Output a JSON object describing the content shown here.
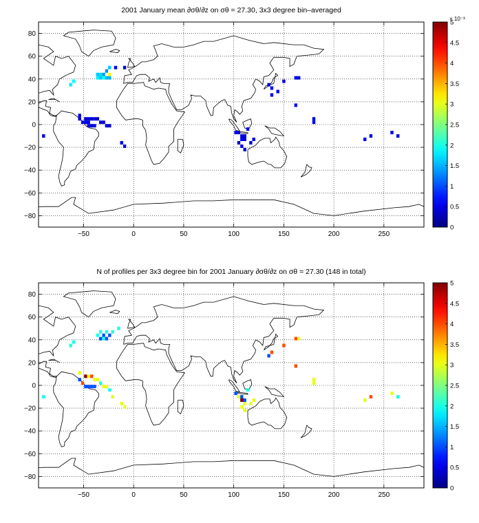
{
  "chart_data": [
    {
      "type": "heatmap",
      "title": "2001 January mean ∂σθ/∂z on σθ = 27.30, 3x3 degree bin–averaged",
      "xlim": [
        -95,
        290
      ],
      "ylim": [
        -90,
        90
      ],
      "xticks": [
        -50,
        0,
        50,
        100,
        150,
        200,
        250
      ],
      "yticks": [
        -80,
        -60,
        -40,
        -20,
        0,
        20,
        40,
        60,
        80
      ],
      "grid": true,
      "colorbar": {
        "min": 0,
        "max": 5,
        "ticks": [
          0,
          0.5,
          1,
          1.5,
          2,
          2.5,
          3,
          3.5,
          4,
          4.5,
          5
        ],
        "multiplier": "× 10⁻³",
        "colormap": "jet"
      },
      "cells": [
        {
          "lon": -90,
          "lat": -10,
          "v": 0.4
        },
        {
          "lon": -60,
          "lat": 38,
          "v": 1.9
        },
        {
          "lon": -63,
          "lat": 35,
          "v": 1.8
        },
        {
          "lon": -36,
          "lat": 44,
          "v": 1.6
        },
        {
          "lon": -33,
          "lat": 44,
          "v": 1.7
        },
        {
          "lon": -30,
          "lat": 44,
          "v": 1.4
        },
        {
          "lon": -27,
          "lat": 47,
          "v": 1.3
        },
        {
          "lon": -24,
          "lat": 50,
          "v": 1.6
        },
        {
          "lon": -36,
          "lat": 41,
          "v": 1.8
        },
        {
          "lon": -33,
          "lat": 41,
          "v": 1.6
        },
        {
          "lon": -30,
          "lat": 41,
          "v": 1.9
        },
        {
          "lon": -27,
          "lat": 41,
          "v": 1.5
        },
        {
          "lon": -24,
          "lat": 44,
          "v": 3.1
        },
        {
          "lon": -24,
          "lat": 41,
          "v": 1.5
        },
        {
          "lon": -18,
          "lat": 50,
          "v": 0.6
        },
        {
          "lon": -9,
          "lat": 50,
          "v": 0.5
        },
        {
          "lon": -54,
          "lat": 8,
          "v": 0.5
        },
        {
          "lon": -54,
          "lat": 5,
          "v": 0.4
        },
        {
          "lon": -51,
          "lat": 2,
          "v": 0.5
        },
        {
          "lon": -48,
          "lat": 5,
          "v": 0.4
        },
        {
          "lon": -48,
          "lat": 2,
          "v": 0.5
        },
        {
          "lon": -45,
          "lat": 5,
          "v": 0.4
        },
        {
          "lon": -45,
          "lat": 2,
          "v": 0.5
        },
        {
          "lon": -42,
          "lat": 5,
          "v": 0.4
        },
        {
          "lon": -39,
          "lat": 5,
          "v": 0.5
        },
        {
          "lon": -45,
          "lat": -1,
          "v": 0.5
        },
        {
          "lon": -42,
          "lat": -1,
          "v": 0.4
        },
        {
          "lon": -39,
          "lat": -1,
          "v": 0.5
        },
        {
          "lon": -36,
          "lat": 5,
          "v": 0.4
        },
        {
          "lon": -33,
          "lat": 2,
          "v": 0.5
        },
        {
          "lon": -30,
          "lat": 2,
          "v": 0.4
        },
        {
          "lon": -27,
          "lat": -1,
          "v": 0.5
        },
        {
          "lon": -24,
          "lat": -1,
          "v": 0.4
        },
        {
          "lon": -12,
          "lat": -16,
          "v": 0.5
        },
        {
          "lon": -9,
          "lat": -19,
          "v": 0.4
        },
        {
          "lon": 135,
          "lat": 35,
          "v": 0.5
        },
        {
          "lon": 138,
          "lat": 32,
          "v": 0.6
        },
        {
          "lon": 138,
          "lat": 26,
          "v": 0.5
        },
        {
          "lon": 144,
          "lat": 29,
          "v": 0.6
        },
        {
          "lon": 150,
          "lat": 38,
          "v": 0.5
        },
        {
          "lon": 162,
          "lat": 41,
          "v": 0.6
        },
        {
          "lon": 165,
          "lat": 41,
          "v": 0.5
        },
        {
          "lon": 162,
          "lat": 17,
          "v": 0.6
        },
        {
          "lon": 180,
          "lat": 5,
          "v": 0.5
        },
        {
          "lon": 180,
          "lat": 2,
          "v": 0.6
        },
        {
          "lon": 102,
          "lat": -7,
          "v": 0.5
        },
        {
          "lon": 105,
          "lat": -7,
          "v": 0.4
        },
        {
          "lon": 108,
          "lat": -10,
          "v": 0.5
        },
        {
          "lon": 111,
          "lat": -10,
          "v": 0.4
        },
        {
          "lon": 108,
          "lat": -13,
          "v": 0.6
        },
        {
          "lon": 111,
          "lat": -13,
          "v": 0.5
        },
        {
          "lon": 105,
          "lat": -16,
          "v": 0.4
        },
        {
          "lon": 108,
          "lat": -19,
          "v": 0.5
        },
        {
          "lon": 111,
          "lat": -22,
          "v": 0.4
        },
        {
          "lon": 117,
          "lat": -16,
          "v": 0.5
        },
        {
          "lon": 120,
          "lat": -13,
          "v": 0.6
        },
        {
          "lon": 114,
          "lat": -4,
          "v": 0.5
        },
        {
          "lon": 231,
          "lat": -13,
          "v": 0.6
        },
        {
          "lon": 237,
          "lat": -10,
          "v": 0.5
        },
        {
          "lon": 258,
          "lat": -7,
          "v": 0.6
        },
        {
          "lon": 264,
          "lat": -10,
          "v": 0.5
        }
      ]
    },
    {
      "type": "heatmap",
      "title": "N of profiles per 3x3 degree bin for 2001 January ∂σθ/∂z on σθ = 27.30 (148 in total)",
      "xlim": [
        -95,
        290
      ],
      "ylim": [
        -90,
        90
      ],
      "xticks": [
        -50,
        0,
        50,
        100,
        150,
        200,
        250
      ],
      "yticks": [
        -80,
        -60,
        -40,
        -20,
        0,
        20,
        40,
        60,
        80
      ],
      "grid": true,
      "colorbar": {
        "min": 0,
        "max": 5,
        "ticks": [
          0,
          0.5,
          1,
          1.5,
          2,
          2.5,
          3,
          3.5,
          4,
          4.5,
          5
        ],
        "multiplier": "",
        "colormap": "jet"
      },
      "cells": [
        {
          "lon": -90,
          "lat": -10,
          "v": 2
        },
        {
          "lon": -60,
          "lat": 38,
          "v": 2
        },
        {
          "lon": -63,
          "lat": 35,
          "v": 2
        },
        {
          "lon": -36,
          "lat": 44,
          "v": 2
        },
        {
          "lon": -33,
          "lat": 47,
          "v": 2
        },
        {
          "lon": -30,
          "lat": 44,
          "v": 1
        },
        {
          "lon": -27,
          "lat": 47,
          "v": 2
        },
        {
          "lon": -24,
          "lat": 44,
          "v": 1
        },
        {
          "lon": -33,
          "lat": 41,
          "v": 1
        },
        {
          "lon": -30,
          "lat": 41,
          "v": 2
        },
        {
          "lon": -27,
          "lat": 41,
          "v": 1
        },
        {
          "lon": -21,
          "lat": 47,
          "v": 2
        },
        {
          "lon": -15,
          "lat": 50,
          "v": 2
        },
        {
          "lon": -54,
          "lat": 11,
          "v": 3
        },
        {
          "lon": -54,
          "lat": 5,
          "v": 1
        },
        {
          "lon": -51,
          "lat": 2,
          "v": 4
        },
        {
          "lon": -48,
          "lat": 8,
          "v": 5
        },
        {
          "lon": -45,
          "lat": 8,
          "v": 3
        },
        {
          "lon": -42,
          "lat": 8,
          "v": 4
        },
        {
          "lon": -39,
          "lat": 5,
          "v": 3
        },
        {
          "lon": -36,
          "lat": 5,
          "v": 3
        },
        {
          "lon": -48,
          "lat": -1,
          "v": 1
        },
        {
          "lon": -45,
          "lat": -1,
          "v": 1
        },
        {
          "lon": -42,
          "lat": -1,
          "v": 1
        },
        {
          "lon": -39,
          "lat": -1,
          "v": 1
        },
        {
          "lon": -33,
          "lat": 2,
          "v": 2
        },
        {
          "lon": -30,
          "lat": -1,
          "v": 3
        },
        {
          "lon": -27,
          "lat": -1,
          "v": 3
        },
        {
          "lon": -24,
          "lat": -4,
          "v": 2
        },
        {
          "lon": -21,
          "lat": -10,
          "v": 3
        },
        {
          "lon": -12,
          "lat": -16,
          "v": 3
        },
        {
          "lon": -9,
          "lat": -19,
          "v": 3
        },
        {
          "lon": 135,
          "lat": 26,
          "v": 1
        },
        {
          "lon": 138,
          "lat": 29,
          "v": 4
        },
        {
          "lon": 150,
          "lat": 35,
          "v": 4
        },
        {
          "lon": 162,
          "lat": 41,
          "v": 4
        },
        {
          "lon": 165,
          "lat": 41,
          "v": 3
        },
        {
          "lon": 162,
          "lat": 17,
          "v": 4
        },
        {
          "lon": 180,
          "lat": 5,
          "v": 3
        },
        {
          "lon": 180,
          "lat": 2,
          "v": 3
        },
        {
          "lon": 102,
          "lat": -7,
          "v": 1
        },
        {
          "lon": 105,
          "lat": -10,
          "v": 3
        },
        {
          "lon": 108,
          "lat": -10,
          "v": 1
        },
        {
          "lon": 108,
          "lat": -13,
          "v": 5
        },
        {
          "lon": 111,
          "lat": -13,
          "v": 1
        },
        {
          "lon": 111,
          "lat": -16,
          "v": 3
        },
        {
          "lon": 108,
          "lat": -19,
          "v": 3
        },
        {
          "lon": 111,
          "lat": -22,
          "v": 3
        },
        {
          "lon": 117,
          "lat": -16,
          "v": 3
        },
        {
          "lon": 120,
          "lat": -13,
          "v": 3
        },
        {
          "lon": 114,
          "lat": -4,
          "v": 2
        },
        {
          "lon": 231,
          "lat": -13,
          "v": 3
        },
        {
          "lon": 237,
          "lat": -10,
          "v": 4
        },
        {
          "lon": 258,
          "lat": -7,
          "v": 3
        },
        {
          "lon": 264,
          "lat": -10,
          "v": 2
        }
      ]
    }
  ]
}
